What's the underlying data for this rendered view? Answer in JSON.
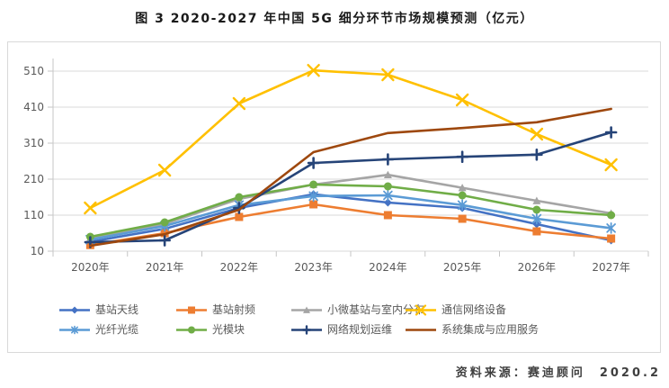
{
  "page": {
    "title": "图 3 2020-2027 年中国 5G 细分环节市场规模预测（亿元）",
    "footer": {
      "label": "资料来源：",
      "source": "赛迪顾问",
      "date": "2020.2"
    }
  },
  "chart_data": {
    "type": "line",
    "title": "图 3 2020-2027 年中国 5G 细分环节市场规模预测（亿元）",
    "unit": "亿元",
    "xlabel": "",
    "ylabel": "",
    "categories": [
      "2020年",
      "2021年",
      "2022年",
      "2023年",
      "2024年",
      "2025年",
      "2026年",
      "2027年"
    ],
    "y_ticks": [
      10,
      110,
      210,
      310,
      410,
      510
    ],
    "ylim": [
      10,
      560
    ],
    "grid": true,
    "legend_position": "bottom",
    "series": [
      {
        "key": "base-station-antenna",
        "name": "基站天线",
        "color": "#4472C4",
        "marker": "diamond",
        "values": [
          36,
          72,
          130,
          168,
          145,
          130,
          85,
          40
        ]
      },
      {
        "key": "base-station-rf",
        "name": "基站射频",
        "color": "#ED7D31",
        "marker": "square",
        "values": [
          27,
          60,
          105,
          140,
          110,
          100,
          65,
          45
        ]
      },
      {
        "key": "small-micro-base-station-indoor",
        "name": "小微基站与室内分布",
        "color": "#A5A5A5",
        "marker": "triangle",
        "values": [
          46,
          86,
          155,
          195,
          222,
          186,
          150,
          115
        ]
      },
      {
        "key": "comm-network-equipment",
        "name": "通信网络设备",
        "color": "#FFC000",
        "marker": "x",
        "values": [
          130,
          235,
          420,
          512,
          500,
          430,
          335,
          250
        ]
      },
      {
        "key": "optical-fiber-cable",
        "name": "光纤光缆",
        "color": "#5B9BD5",
        "marker": "asterisk",
        "values": [
          42,
          80,
          138,
          163,
          165,
          138,
          100,
          74
        ]
      },
      {
        "key": "optical-module",
        "name": "光模块",
        "color": "#70AD47",
        "marker": "circle",
        "values": [
          50,
          90,
          160,
          195,
          190,
          165,
          125,
          110
        ]
      },
      {
        "key": "network-planning-om",
        "name": "网络规划运维",
        "color": "#264478",
        "marker": "plus",
        "values": [
          35,
          40,
          130,
          255,
          265,
          272,
          278,
          340
        ]
      },
      {
        "key": "system-integration-app-services",
        "name": "系统集成与应用服务",
        "color": "#9E480E",
        "marker": "none",
        "values": [
          25,
          57,
          125,
          285,
          338,
          352,
          368,
          405
        ]
      }
    ]
  }
}
